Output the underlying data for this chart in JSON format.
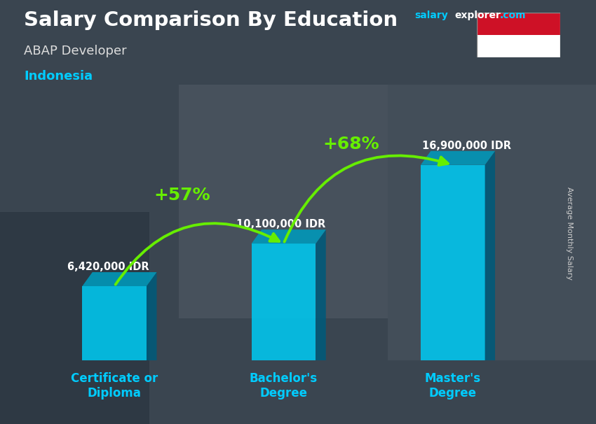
{
  "title": "Salary Comparison By Education",
  "subtitle_job": "ABAP Developer",
  "subtitle_location": "Indonesia",
  "ylabel": "Average Monthly Salary",
  "website_salary": "salary",
  "website_explorer": "explorer",
  "website_dot_com": ".com",
  "categories": [
    "Certificate or\nDiploma",
    "Bachelor's\nDegree",
    "Master's\nDegree"
  ],
  "values": [
    6420000,
    10100000,
    16900000
  ],
  "value_labels": [
    "6,420,000 IDR",
    "10,100,000 IDR",
    "16,900,000 IDR"
  ],
  "pct_labels": [
    "+57%",
    "+68%"
  ],
  "bar_color_front": "#00c8f0",
  "bar_color_side": "#005a7a",
  "bar_color_top": "#0099bb",
  "arrow_color": "#66ee00",
  "title_color": "#ffffff",
  "subtitle_job_color": "#dddddd",
  "subtitle_location_color": "#00ccff",
  "value_label_color": "#ffffff",
  "pct_label_color": "#66ee00",
  "xtick_color": "#00ccff",
  "ylabel_color": "#cccccc",
  "bg_color": "#3a4550",
  "bar_width": 0.38,
  "bar_positions": [
    0.18,
    0.5,
    0.8
  ],
  "ylim": [
    0,
    22000000
  ],
  "flag_red": "#ce1126",
  "flag_white": "#ffffff",
  "website_salary_color": "#00ccff",
  "website_explorer_color": "#ffffff",
  "website_com_color": "#00ccff"
}
